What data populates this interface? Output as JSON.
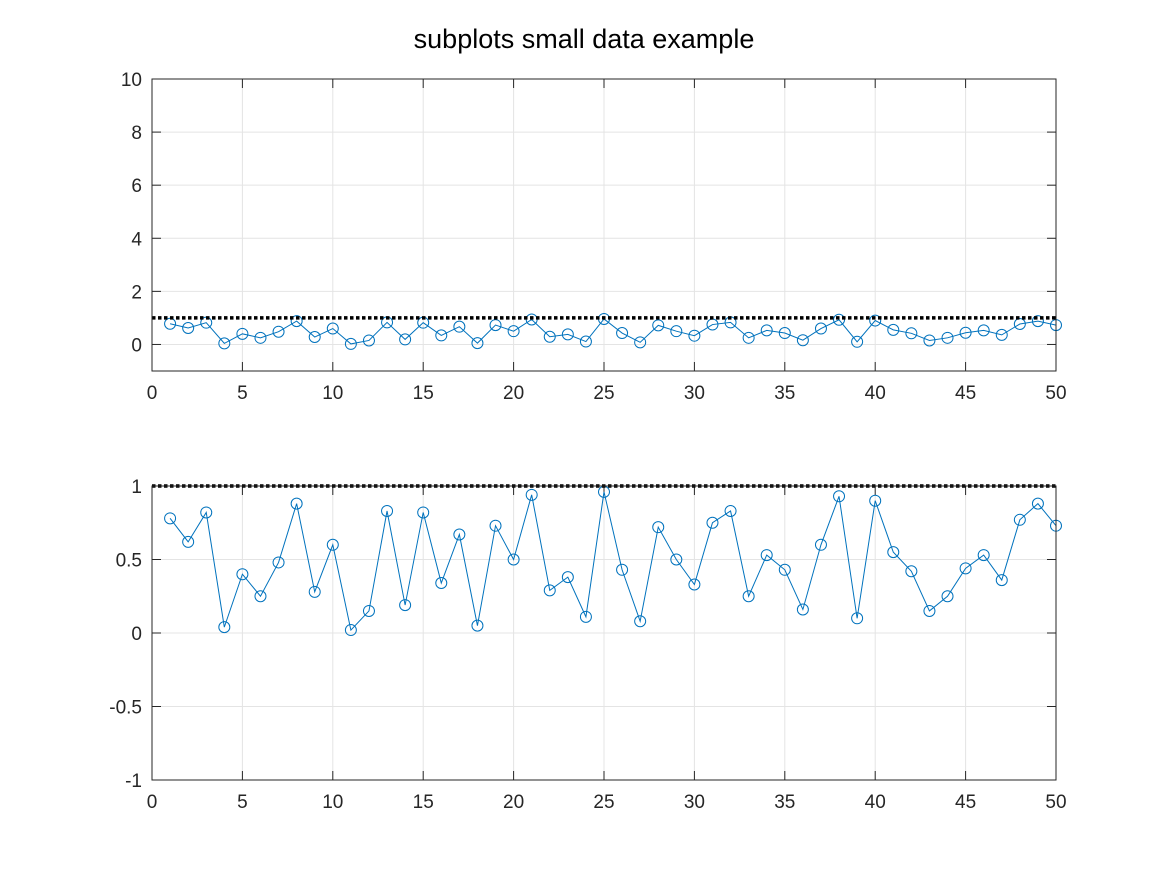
{
  "figure": {
    "title": "subplots  small data example"
  },
  "chart_data": [
    {
      "type": "line",
      "title": "",
      "xlabel": "",
      "ylabel": "",
      "xlim": [
        0,
        50
      ],
      "ylim": [
        -1,
        10
      ],
      "xticks": [
        0,
        5,
        10,
        15,
        20,
        25,
        30,
        35,
        40,
        45,
        50
      ],
      "xtick_labels": [
        "0",
        "5",
        "10",
        "15",
        "20",
        "25",
        "30",
        "35",
        "40",
        "45",
        "50"
      ],
      "yticks": [
        0,
        2,
        4,
        6,
        8,
        10
      ],
      "ytick_labels": [
        "0",
        "2",
        "4",
        "6",
        "8",
        "10"
      ],
      "grid": true,
      "reference_line": {
        "y": 1,
        "style": "dotted",
        "color": "#000000"
      },
      "series": [
        {
          "marker": "circle",
          "color": "#0072BD",
          "x": [
            1,
            2,
            3,
            4,
            5,
            6,
            7,
            8,
            9,
            10,
            11,
            12,
            13,
            14,
            15,
            16,
            17,
            18,
            19,
            20,
            21,
            22,
            23,
            24,
            25,
            26,
            27,
            28,
            29,
            30,
            31,
            32,
            33,
            34,
            35,
            36,
            37,
            38,
            39,
            40,
            41,
            42,
            43,
            44,
            45,
            46,
            47,
            48,
            49,
            50
          ],
          "y": [
            0.78,
            0.62,
            0.82,
            0.04,
            0.4,
            0.25,
            0.48,
            0.88,
            0.28,
            0.6,
            0.02,
            0.15,
            0.83,
            0.19,
            0.82,
            0.34,
            0.67,
            0.05,
            0.73,
            0.5,
            0.94,
            0.29,
            0.38,
            0.11,
            0.96,
            0.43,
            0.08,
            0.72,
            0.5,
            0.33,
            0.75,
            0.83,
            0.25,
            0.53,
            0.43,
            0.16,
            0.6,
            0.93,
            0.1,
            0.9,
            0.55,
            0.42,
            0.15,
            0.25,
            0.44,
            0.53,
            0.36,
            0.77,
            0.88,
            0.73
          ]
        }
      ]
    },
    {
      "type": "line",
      "title": "",
      "xlabel": "",
      "ylabel": "",
      "xlim": [
        0,
        50
      ],
      "ylim": [
        -1,
        1
      ],
      "xticks": [
        0,
        5,
        10,
        15,
        20,
        25,
        30,
        35,
        40,
        45,
        50
      ],
      "xtick_labels": [
        "0",
        "5",
        "10",
        "15",
        "20",
        "25",
        "30",
        "35",
        "40",
        "45",
        "50"
      ],
      "yticks": [
        -1,
        -0.5,
        0,
        0.5,
        1
      ],
      "ytick_labels": [
        "-1",
        "-0.5",
        "0",
        "0.5",
        "1"
      ],
      "grid": true,
      "reference_line": {
        "y": 1,
        "style": "dotted",
        "color": "#000000"
      },
      "series": [
        {
          "marker": "circle",
          "color": "#0072BD",
          "x": [
            1,
            2,
            3,
            4,
            5,
            6,
            7,
            8,
            9,
            10,
            11,
            12,
            13,
            14,
            15,
            16,
            17,
            18,
            19,
            20,
            21,
            22,
            23,
            24,
            25,
            26,
            27,
            28,
            29,
            30,
            31,
            32,
            33,
            34,
            35,
            36,
            37,
            38,
            39,
            40,
            41,
            42,
            43,
            44,
            45,
            46,
            47,
            48,
            49,
            50
          ],
          "y": [
            0.78,
            0.62,
            0.82,
            0.04,
            0.4,
            0.25,
            0.48,
            0.88,
            0.28,
            0.6,
            0.02,
            0.15,
            0.83,
            0.19,
            0.82,
            0.34,
            0.67,
            0.05,
            0.73,
            0.5,
            0.94,
            0.29,
            0.38,
            0.11,
            0.96,
            0.43,
            0.08,
            0.72,
            0.5,
            0.33,
            0.75,
            0.83,
            0.25,
            0.53,
            0.43,
            0.16,
            0.6,
            0.93,
            0.1,
            0.9,
            0.55,
            0.42,
            0.15,
            0.25,
            0.44,
            0.53,
            0.36,
            0.77,
            0.88,
            0.73
          ]
        }
      ]
    }
  ]
}
